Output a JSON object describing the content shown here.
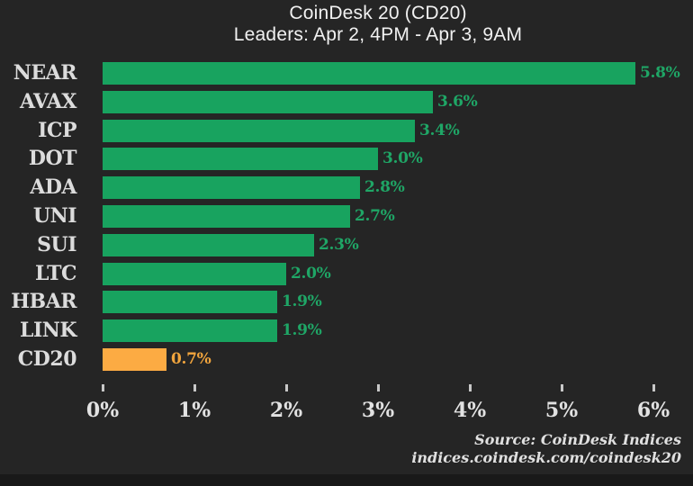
{
  "title": {
    "line1": "CoinDesk 20 (CD20)",
    "line2": "Leaders: Apr 2, 4PM - Apr 3, 9AM"
  },
  "chart_data": {
    "type": "bar",
    "orientation": "horizontal",
    "title": "CoinDesk 20 (CD20)",
    "subtitle": "Leaders: Apr 2, 4PM - Apr 3, 9AM",
    "categories": [
      "NEAR",
      "AVAX",
      "ICP",
      "DOT",
      "ADA",
      "UNI",
      "SUI",
      "LTC",
      "HBAR",
      "LINK",
      "CD20"
    ],
    "values": [
      5.8,
      3.6,
      3.4,
      3.0,
      2.8,
      2.7,
      2.3,
      2.0,
      1.9,
      1.9,
      0.7
    ],
    "value_labels": [
      "5.8%",
      "3.6%",
      "3.4%",
      "3.0%",
      "2.8%",
      "2.7%",
      "2.3%",
      "2.0%",
      "1.9%",
      "1.9%",
      "0.7%"
    ],
    "xlim": [
      0,
      6
    ],
    "x_tick_values": [
      0,
      1,
      2,
      3,
      4,
      5,
      6
    ],
    "x_tick_labels": [
      "0%",
      "1%",
      "2%",
      "3%",
      "4%",
      "5%",
      "6%"
    ],
    "grid": false,
    "legend": false,
    "background_color": "#252525",
    "bar_color": "#18a35f",
    "highlight_category": "CD20",
    "highlight_color": "#fcab43",
    "value_label_color": "#1fa666",
    "highlight_value_label_color": "#f2a53d"
  },
  "source": {
    "line1": "Source: CoinDesk Indices",
    "line2": "indices.coindesk.com/coindesk20"
  }
}
